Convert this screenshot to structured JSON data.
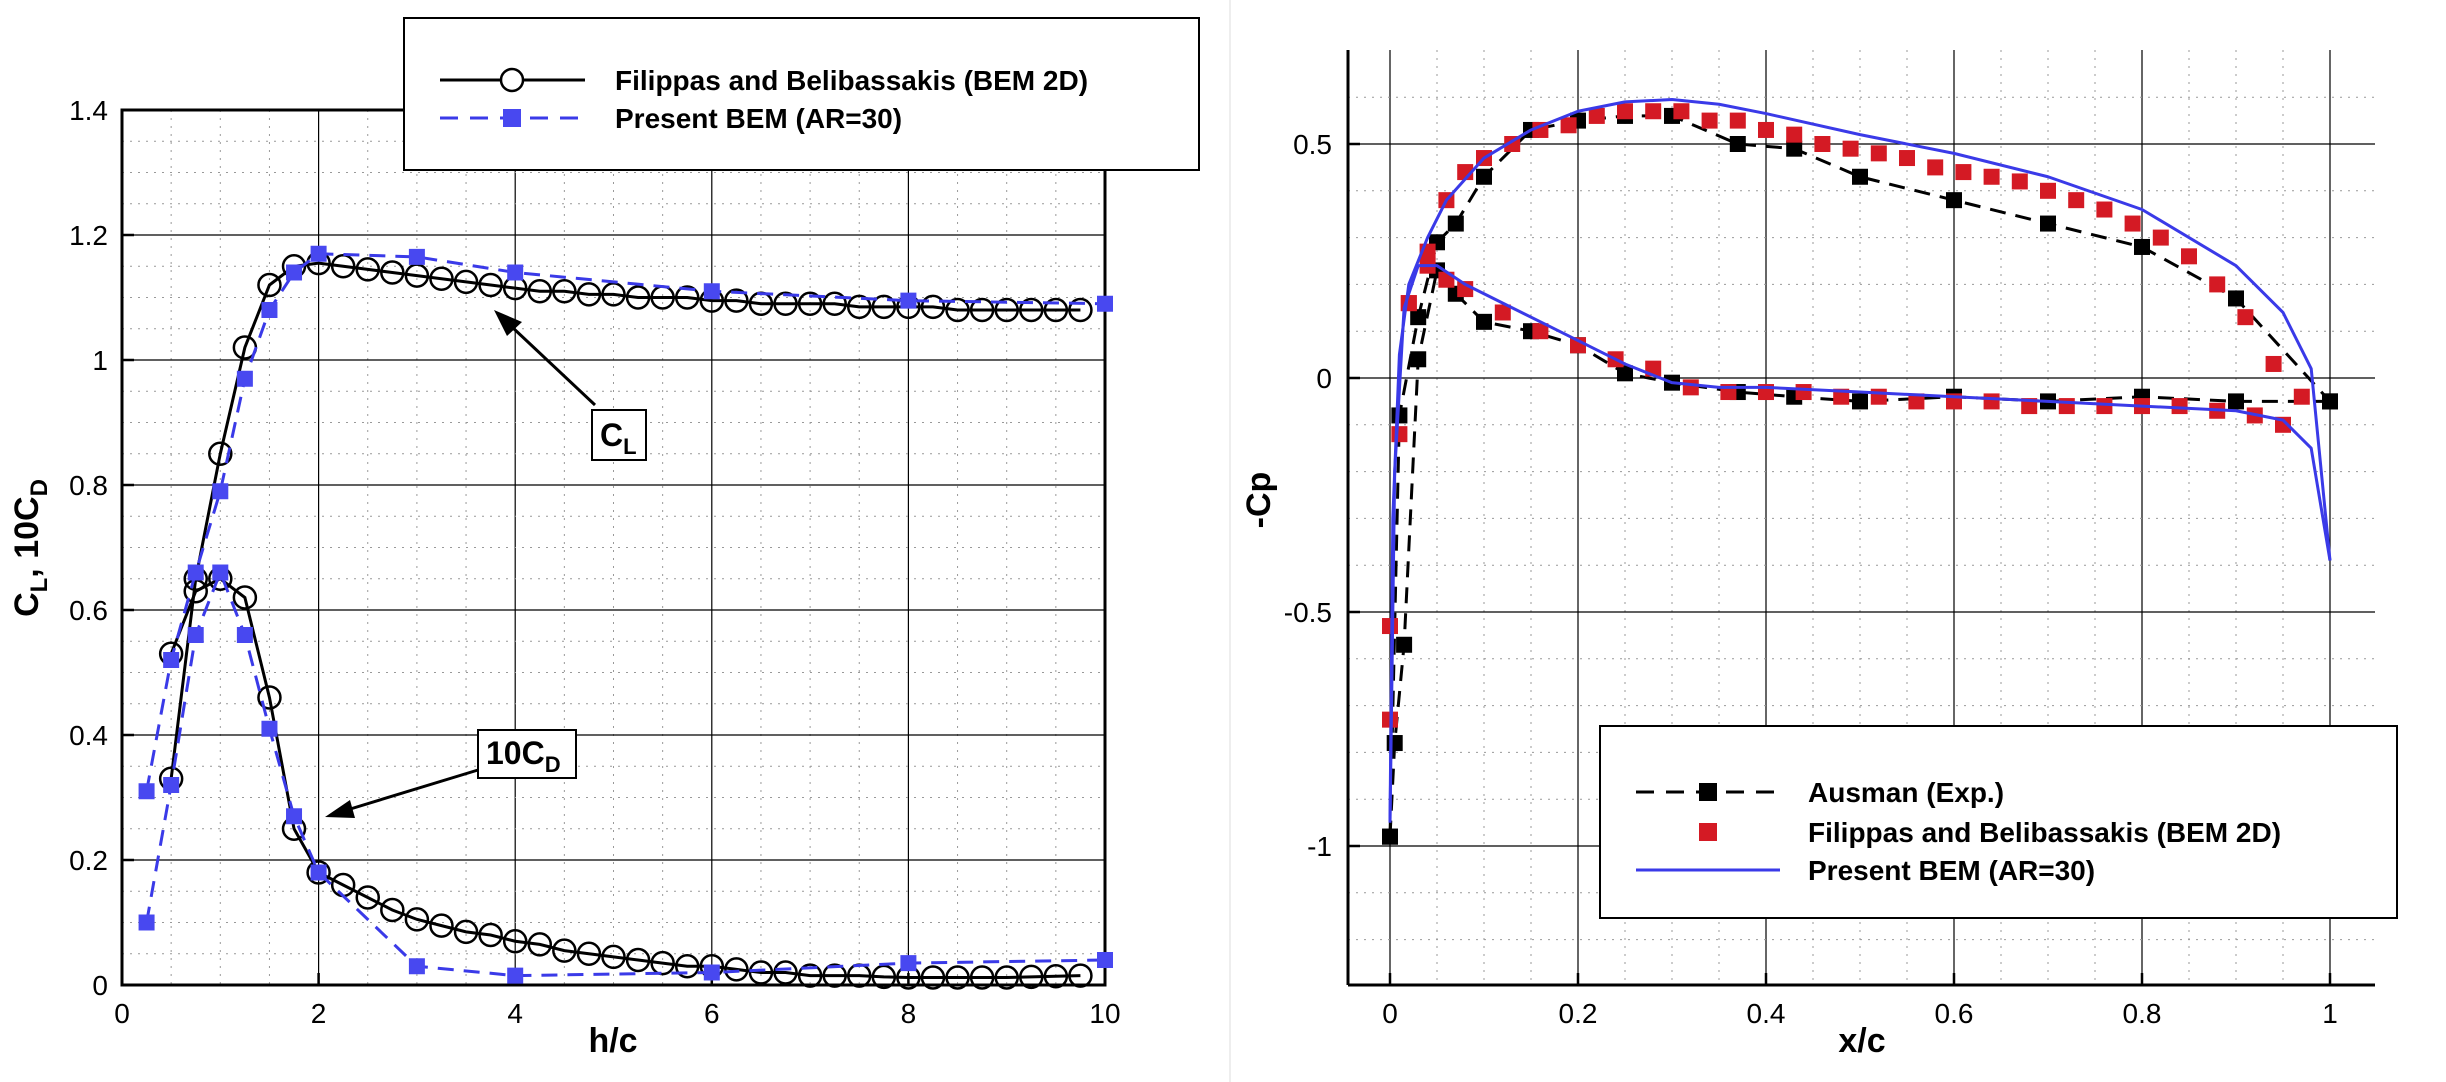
{
  "chart_data": [
    {
      "type": "line",
      "xlabel": "h/c",
      "ylabel": {
        "main": "C",
        "sub1": "L",
        "sep": ", 10C",
        "sub2": "D"
      },
      "xlim": [
        0,
        10
      ],
      "ylim": [
        0,
        1.4
      ],
      "x_ticks": [
        "0",
        "2",
        "4",
        "6",
        "8",
        "10"
      ],
      "y_ticks": [
        "0",
        "0.2",
        "0.4",
        "0.6",
        "0.8",
        "1",
        "1.2",
        "1.4"
      ],
      "grid": true,
      "legend": {
        "position": "top-right",
        "entries": [
          "Filippas and Belibassakis (BEM 2D)",
          "Present BEM (AR=30)"
        ]
      },
      "annotations": [
        {
          "main": "C",
          "sub": "L",
          "points_to": [
            3.85,
            1.12
          ]
        },
        {
          "main": "10C",
          "sub": "D",
          "points_to": [
            2.0,
            0.33
          ]
        }
      ],
      "series": [
        {
          "name": "Filippas and Belibassakis (BEM 2D)",
          "quantity": "CL",
          "style": "black-solid-circle",
          "x": [
            0.5,
            0.75,
            1.0,
            1.25,
            1.5,
            1.75,
            2.0,
            2.25,
            2.5,
            2.75,
            3.0,
            3.25,
            3.5,
            3.75,
            4.0,
            4.25,
            4.5,
            4.75,
            5.0,
            5.25,
            5.5,
            5.75,
            6.0,
            6.25,
            6.5,
            6.75,
            7.0,
            7.25,
            7.5,
            7.75,
            8.0,
            8.25,
            8.5,
            8.75,
            9.0,
            9.25,
            9.5,
            9.75
          ],
          "y": [
            0.33,
            0.65,
            0.85,
            1.02,
            1.12,
            1.15,
            1.155,
            1.15,
            1.145,
            1.14,
            1.135,
            1.13,
            1.125,
            1.12,
            1.115,
            1.11,
            1.11,
            1.105,
            1.105,
            1.1,
            1.1,
            1.1,
            1.095,
            1.095,
            1.09,
            1.09,
            1.09,
            1.09,
            1.085,
            1.085,
            1.085,
            1.085,
            1.08,
            1.08,
            1.08,
            1.08,
            1.08,
            1.08
          ]
        },
        {
          "name": "Filippas and Belibassakis (BEM 2D)",
          "quantity": "10CD",
          "style": "black-solid-circle",
          "x": [
            0.5,
            0.75,
            1.0,
            1.25,
            1.5,
            1.75,
            2.0,
            2.25,
            2.5,
            2.75,
            3.0,
            3.25,
            3.5,
            3.75,
            4.0,
            4.25,
            4.5,
            4.75,
            5.0,
            5.25,
            5.5,
            5.75,
            6.0,
            6.25,
            6.5,
            6.75,
            7.0,
            7.25,
            7.5,
            7.75,
            8.0,
            8.25,
            8.5,
            8.75,
            9.0,
            9.25,
            9.5,
            9.75
          ],
          "y": [
            0.53,
            0.63,
            0.65,
            0.62,
            0.46,
            0.25,
            0.18,
            0.16,
            0.14,
            0.12,
            0.105,
            0.095,
            0.085,
            0.08,
            0.07,
            0.065,
            0.055,
            0.05,
            0.045,
            0.04,
            0.035,
            0.03,
            0.03,
            0.025,
            0.02,
            0.02,
            0.015,
            0.015,
            0.015,
            0.013,
            0.012,
            0.012,
            0.012,
            0.012,
            0.012,
            0.013,
            0.014,
            0.015
          ]
        },
        {
          "name": "Present BEM (AR=30)",
          "quantity": "CL",
          "style": "blue-dashed-square",
          "x": [
            0.25,
            0.5,
            0.75,
            1.0,
            1.25,
            1.5,
            1.75,
            2.0,
            3.0,
            4.0,
            6.0,
            8.0,
            10.0
          ],
          "y": [
            0.31,
            0.52,
            0.66,
            0.79,
            0.97,
            1.08,
            1.14,
            1.17,
            1.165,
            1.14,
            1.11,
            1.095,
            1.09
          ]
        },
        {
          "name": "Present BEM (AR=30)",
          "quantity": "10CD",
          "style": "blue-dashed-square",
          "x": [
            0.25,
            0.5,
            0.75,
            1.0,
            1.25,
            1.5,
            1.75,
            2.0,
            3.0,
            4.0,
            6.0,
            8.0,
            10.0
          ],
          "y": [
            0.1,
            0.32,
            0.56,
            0.66,
            0.56,
            0.41,
            0.27,
            0.18,
            0.03,
            0.015,
            0.02,
            0.035,
            0.04
          ]
        }
      ]
    },
    {
      "type": "line",
      "xlabel": "x/c",
      "ylabel": "-Cp",
      "xlim": [
        -0.05,
        1.05
      ],
      "ylim": [
        -1.3,
        0.7
      ],
      "x_ticks": [
        "0",
        "0.2",
        "0.4",
        "0.6",
        "0.8",
        "1"
      ],
      "y_ticks": [
        "-1",
        "-0.5",
        "0",
        "0.5"
      ],
      "grid": true,
      "legend": {
        "position": "bottom-right",
        "entries": [
          "Ausman (Exp.)",
          "Filippas and Belibassakis (BEM 2D)",
          "Present BEM (AR=30)"
        ]
      },
      "series": [
        {
          "name": "Ausman (Exp.)",
          "surface": "upper",
          "style": "black-dashed-square",
          "x": [
            0.0,
            0.01,
            0.03,
            0.05,
            0.07,
            0.1,
            0.15,
            0.2,
            0.25,
            0.3,
            0.37,
            0.43,
            0.5,
            0.6,
            0.7,
            0.8,
            0.9,
            1.0
          ],
          "y": [
            -0.98,
            -0.08,
            0.13,
            0.29,
            0.33,
            0.43,
            0.53,
            0.55,
            0.56,
            0.56,
            0.5,
            0.49,
            0.43,
            0.38,
            0.33,
            0.28,
            0.17,
            -0.05
          ]
        },
        {
          "name": "Ausman (Exp.)",
          "surface": "lower",
          "style": "black-dashed-square",
          "x": [
            0.0,
            0.005,
            0.015,
            0.03,
            0.05,
            0.07,
            0.1,
            0.15,
            0.2,
            0.25,
            0.3,
            0.37,
            0.43,
            0.5,
            0.6,
            0.7,
            0.8,
            0.9,
            1.0
          ],
          "y": [
            -0.98,
            -0.78,
            -0.57,
            0.04,
            0.23,
            0.18,
            0.12,
            0.1,
            0.07,
            0.01,
            -0.01,
            -0.03,
            -0.04,
            -0.05,
            -0.04,
            -0.05,
            -0.04,
            -0.05,
            -0.05
          ]
        },
        {
          "name": "Filippas and Belibassakis (BEM 2D)",
          "surface": "upper",
          "style": "red-square",
          "x": [
            0.0,
            0.01,
            0.02,
            0.04,
            0.06,
            0.08,
            0.1,
            0.13,
            0.16,
            0.19,
            0.22,
            0.25,
            0.28,
            0.31,
            0.34,
            0.37,
            0.4,
            0.43,
            0.46,
            0.49,
            0.52,
            0.55,
            0.58,
            0.61,
            0.64,
            0.67,
            0.7,
            0.73,
            0.76,
            0.79,
            0.82,
            0.85,
            0.88,
            0.91,
            0.94,
            0.97
          ],
          "y": [
            -0.73,
            -0.12,
            0.16,
            0.27,
            0.38,
            0.44,
            0.47,
            0.5,
            0.53,
            0.54,
            0.56,
            0.57,
            0.57,
            0.57,
            0.55,
            0.55,
            0.53,
            0.52,
            0.5,
            0.49,
            0.48,
            0.47,
            0.45,
            0.44,
            0.43,
            0.42,
            0.4,
            0.38,
            0.36,
            0.33,
            0.3,
            0.26,
            0.2,
            0.13,
            0.03,
            -0.04
          ]
        },
        {
          "name": "Filippas and Belibassakis (BEM 2D)",
          "surface": "lower",
          "style": "red-square",
          "x": [
            0.0,
            0.02,
            0.04,
            0.06,
            0.08,
            0.12,
            0.16,
            0.2,
            0.24,
            0.28,
            0.32,
            0.36,
            0.4,
            0.44,
            0.48,
            0.52,
            0.56,
            0.6,
            0.64,
            0.68,
            0.72,
            0.76,
            0.8,
            0.84,
            0.88,
            0.92,
            0.95
          ],
          "y": [
            -0.53,
            0.16,
            0.24,
            0.21,
            0.19,
            0.14,
            0.1,
            0.07,
            0.04,
            0.02,
            -0.02,
            -0.03,
            -0.03,
            -0.03,
            -0.04,
            -0.04,
            -0.05,
            -0.05,
            -0.05,
            -0.06,
            -0.06,
            -0.06,
            -0.06,
            -0.06,
            -0.07,
            -0.08,
            -0.1
          ]
        },
        {
          "name": "Present BEM (AR=30)",
          "surface": "upper",
          "style": "blue-solid",
          "x": [
            0.0,
            0.003,
            0.01,
            0.02,
            0.04,
            0.06,
            0.1,
            0.15,
            0.2,
            0.25,
            0.3,
            0.35,
            0.4,
            0.5,
            0.6,
            0.7,
            0.8,
            0.9,
            0.95,
            0.98,
            1.0
          ],
          "y": [
            -0.95,
            -0.3,
            0.05,
            0.2,
            0.3,
            0.38,
            0.47,
            0.53,
            0.57,
            0.59,
            0.595,
            0.585,
            0.565,
            0.52,
            0.48,
            0.43,
            0.36,
            0.24,
            0.14,
            0.02,
            -0.39
          ]
        },
        {
          "name": "Present BEM (AR=30)",
          "surface": "lower",
          "style": "blue-solid",
          "x": [
            0.0,
            0.005,
            0.015,
            0.03,
            0.05,
            0.08,
            0.12,
            0.16,
            0.2,
            0.25,
            0.3,
            0.35,
            0.4,
            0.5,
            0.6,
            0.7,
            0.8,
            0.9,
            0.95,
            0.98,
            1.0
          ],
          "y": [
            -0.95,
            -0.2,
            0.15,
            0.24,
            0.24,
            0.2,
            0.16,
            0.12,
            0.08,
            0.03,
            -0.01,
            -0.02,
            -0.02,
            -0.03,
            -0.04,
            -0.05,
            -0.06,
            -0.07,
            -0.09,
            -0.15,
            -0.39
          ]
        }
      ]
    }
  ]
}
